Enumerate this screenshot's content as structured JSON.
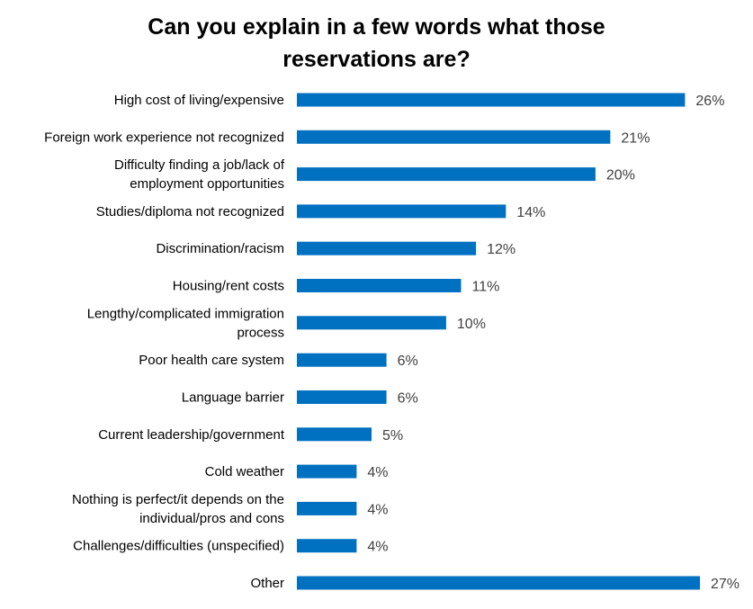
{
  "chart_data": {
    "type": "bar",
    "orientation": "horizontal",
    "title_lines": [
      "Can you explain in a few words what those",
      "reservations are?"
    ],
    "categories": [
      [
        "High cost of living/expensive"
      ],
      [
        "Foreign work experience not recognized"
      ],
      [
        "Difficulty finding a job/lack of",
        "employment opportunities"
      ],
      [
        "Studies/diploma not recognized"
      ],
      [
        "Discrimination/racism"
      ],
      [
        "Housing/rent costs"
      ],
      [
        "Lengthy/complicated immigration",
        "process"
      ],
      [
        "Poor health care system"
      ],
      [
        "Language barrier"
      ],
      [
        "Current leadership/government"
      ],
      [
        "Cold weather"
      ],
      [
        "Nothing is perfect/it depends on the",
        "individual/pros and cons"
      ],
      [
        "Challenges/difficulties (unspecified)"
      ],
      [
        "Other"
      ]
    ],
    "values": [
      26,
      21,
      20,
      14,
      12,
      11,
      10,
      6,
      6,
      5,
      4,
      4,
      4,
      27
    ],
    "value_labels": [
      "26%",
      "21%",
      "20%",
      "14%",
      "12%",
      "11%",
      "10%",
      "6%",
      "6%",
      "5%",
      "4%",
      "4%",
      "4%",
      "27%"
    ],
    "xlim": [
      0,
      27
    ],
    "bar_color": "#0070C0",
    "label_color": "#000000",
    "value_label_color": "#404040",
    "xlabel": "",
    "ylabel": "",
    "grid": false,
    "legend": "none"
  }
}
